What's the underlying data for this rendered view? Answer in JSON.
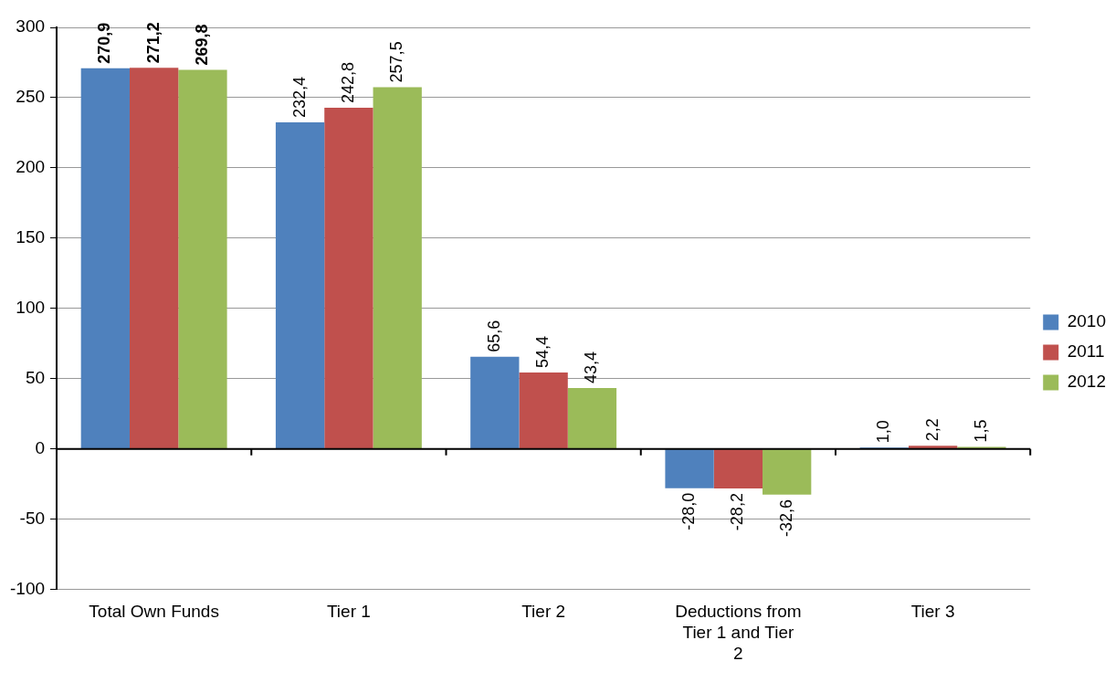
{
  "chart_data": {
    "type": "bar",
    "categories": [
      "Total Own Funds",
      "Tier 1",
      "Tier 2",
      "Deductions from Tier 1 and Tier 2",
      "Tier 3"
    ],
    "series": [
      {
        "name": "2010",
        "color": "#4f81bd",
        "values": [
          270.9,
          232.4,
          65.6,
          -28.0,
          1.0
        ],
        "value_labels": [
          "270,9",
          "232,4",
          "65,6",
          "-28,0",
          "1,0"
        ]
      },
      {
        "name": "2011",
        "color": "#c0504d",
        "values": [
          271.2,
          242.8,
          54.4,
          -28.2,
          2.2
        ],
        "value_labels": [
          "271,2",
          "242,8",
          "54,4",
          "-28,2",
          "2,2"
        ]
      },
      {
        "name": "2012",
        "color": "#9bbb59",
        "values": [
          269.8,
          257.5,
          43.4,
          -32.6,
          1.5
        ],
        "value_labels": [
          "269,8",
          "257,5",
          "43,4",
          "-32,6",
          "1,5"
        ]
      }
    ],
    "ylim": [
      -100,
      300
    ],
    "yticks": [
      -100,
      -50,
      0,
      50,
      100,
      150,
      200,
      250,
      300
    ],
    "grid": "y",
    "legend": "right"
  }
}
